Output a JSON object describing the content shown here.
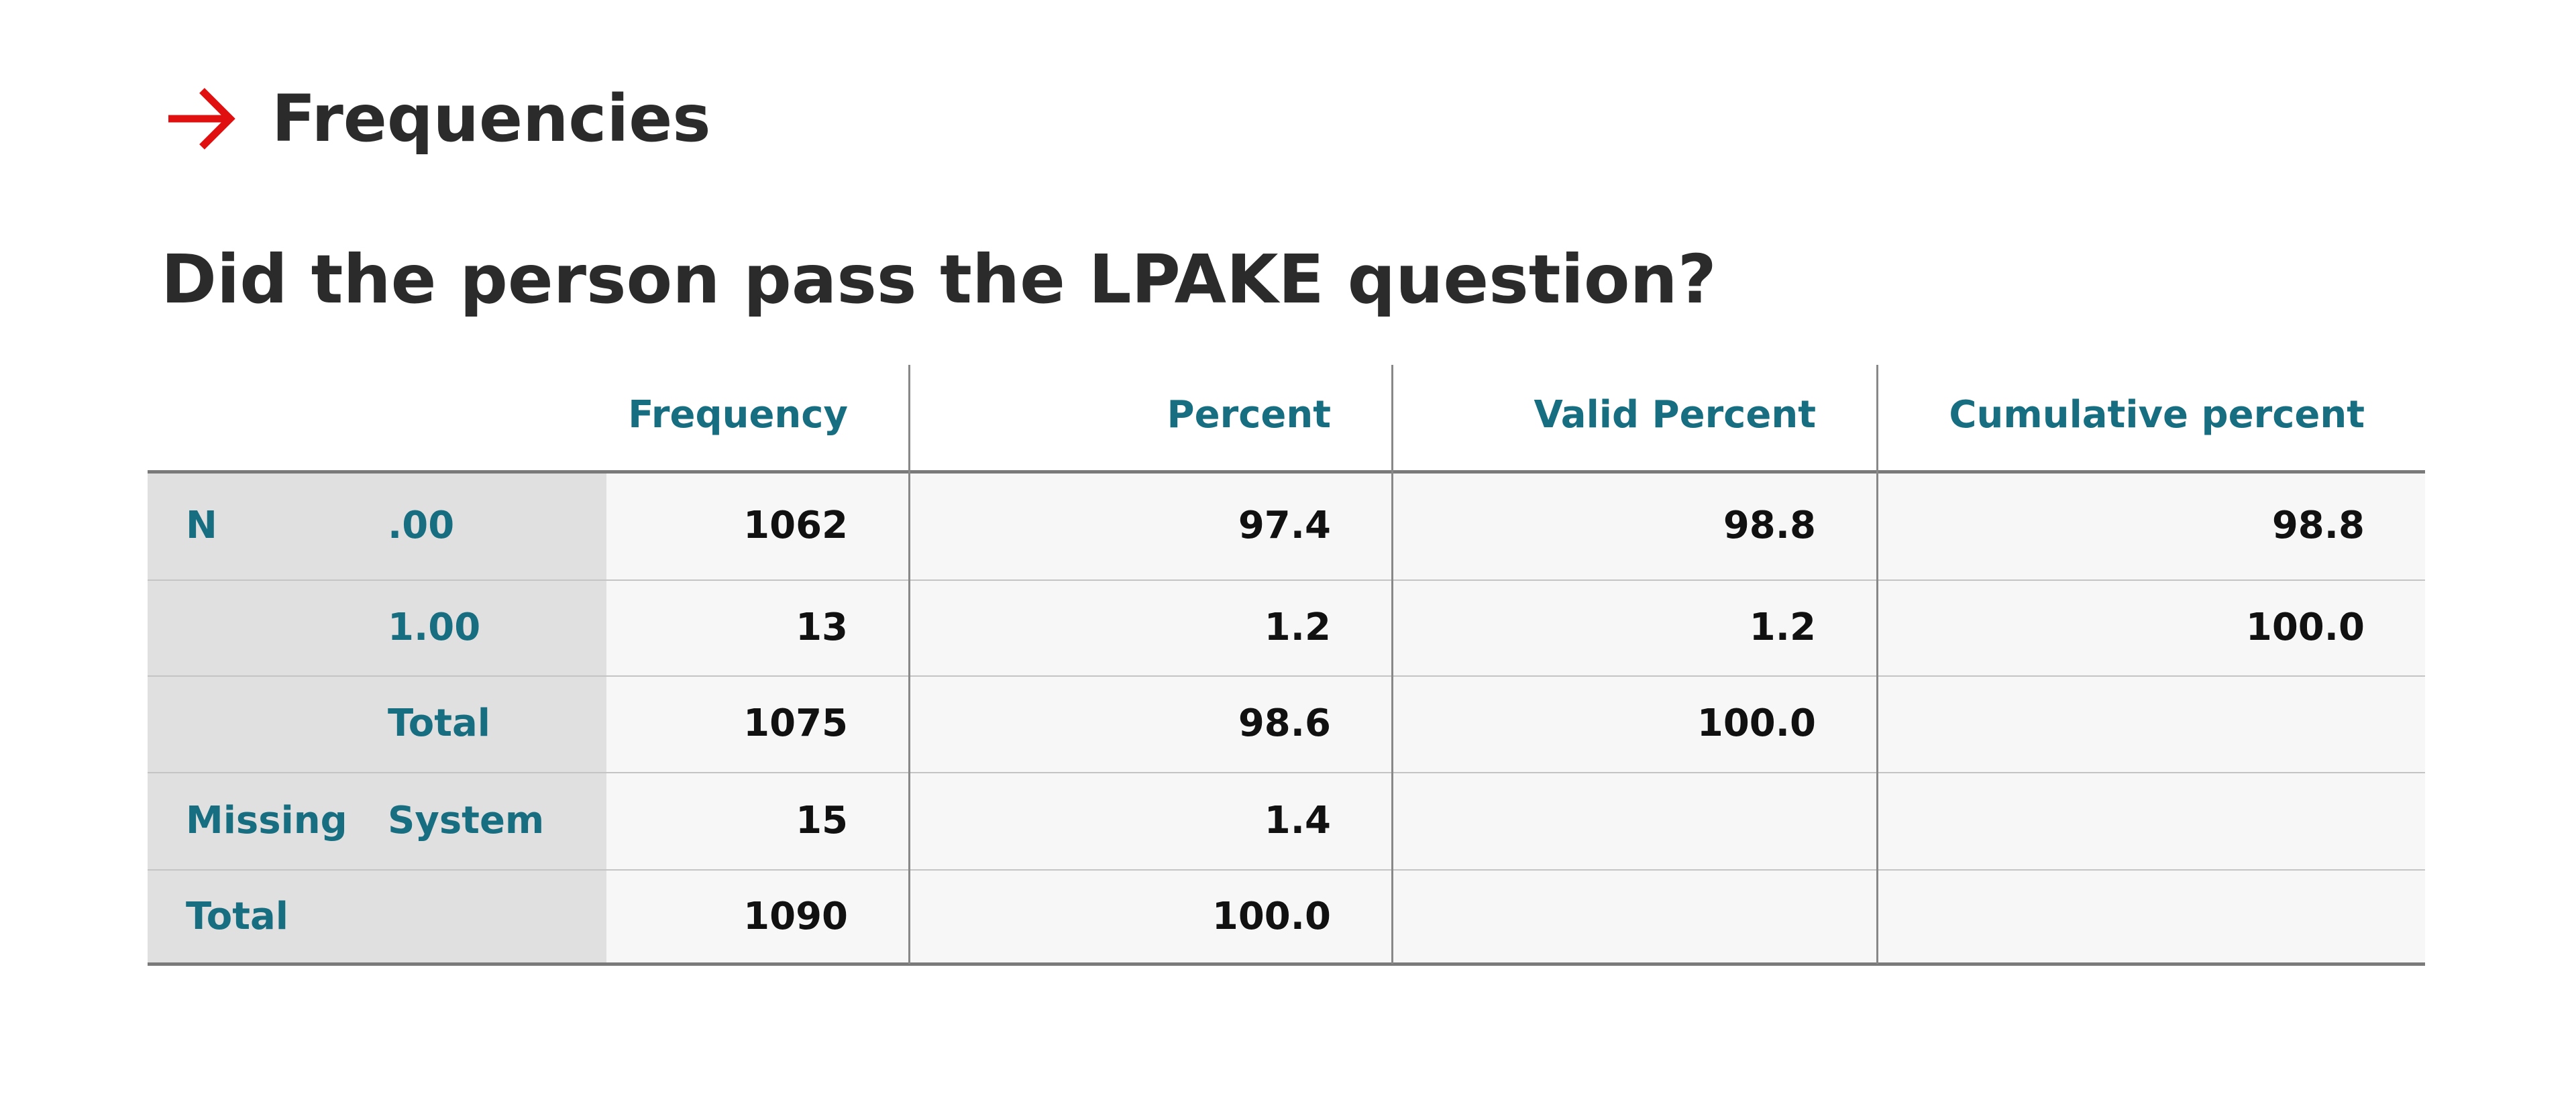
{
  "header": {
    "title": "Frequencies"
  },
  "question": "Did the person pass the LPAKE question?",
  "table": {
    "columns": [
      "Frequency",
      "Percent",
      "Valid Percent",
      "Cumulative percent"
    ],
    "rows": [
      {
        "group": "N",
        "label": ".00",
        "cells": [
          "1062",
          "97.4",
          "98.8",
          "98.8"
        ]
      },
      {
        "label": "1.00",
        "cells": [
          "13",
          "1.2",
          "1.2",
          "100.0"
        ]
      },
      {
        "label": "Total",
        "cells": [
          "1075",
          "98.6",
          "100.0"
        ]
      },
      {
        "group": "Missing",
        "label": "System",
        "cells": [
          "15",
          "1.4"
        ]
      },
      {
        "group": "Total",
        "cells": [
          "1090",
          "100.0"
        ]
      }
    ]
  }
}
